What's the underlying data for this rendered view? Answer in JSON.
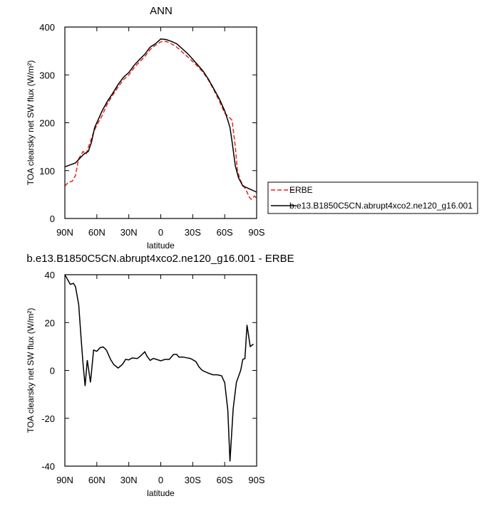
{
  "chart_data": [
    {
      "type": "line",
      "title": "ANN",
      "xlabel": "latitude",
      "ylabel": "TOA clearsky net SW flux (W/m²)",
      "xlim": [
        90,
        -90
      ],
      "xticks": [
        {
          "value": 90,
          "label": "90N"
        },
        {
          "value": 60,
          "label": "60N"
        },
        {
          "value": 30,
          "label": "30N"
        },
        0,
        {
          "value": -30,
          "label": "30S"
        },
        {
          "value": -60,
          "label": "60S"
        },
        {
          "value": -90,
          "label": "90S"
        }
      ],
      "ylim": [
        0,
        400
      ],
      "yticks": [
        0,
        100,
        200,
        300,
        400
      ],
      "legend": "right",
      "series": [
        {
          "name": "ERBE",
          "color": "#e8231c",
          "dash": "dashed",
          "x": [
            90,
            87,
            83,
            80,
            77,
            73,
            70,
            67,
            63,
            60,
            55,
            50,
            45,
            40,
            35,
            30,
            25,
            20,
            15,
            10,
            5,
            0,
            -5,
            -10,
            -15,
            -20,
            -25,
            -30,
            -35,
            -40,
            -45,
            -50,
            -55,
            -60,
            -65,
            -67,
            -70,
            -72,
            -75,
            -80,
            -83,
            -85,
            -88,
            -90
          ],
          "values": [
            68,
            75,
            78,
            90,
            125,
            140,
            135,
            155,
            180,
            195,
            215,
            240,
            258,
            275,
            290,
            300,
            315,
            327,
            338,
            353,
            362,
            369,
            370,
            365,
            358,
            348,
            338,
            328,
            317,
            305,
            288,
            268,
            245,
            220,
            210,
            205,
            150,
            100,
            78,
            60,
            45,
            40,
            47,
            42
          ]
        },
        {
          "name": "b.e13.B1850C5CN.abrupt4xco2.ne120_g16.001",
          "color": "#000000",
          "dash": "solid",
          "x": [
            90,
            85,
            80,
            75,
            72,
            68,
            65,
            62,
            58,
            55,
            50,
            45,
            40,
            35,
            30,
            25,
            20,
            15,
            10,
            5,
            0,
            -5,
            -10,
            -15,
            -20,
            -25,
            -30,
            -35,
            -40,
            -45,
            -50,
            -55,
            -60,
            -63,
            -65,
            -67,
            -70,
            -73,
            -77,
            -82,
            -85,
            -90
          ],
          "values": [
            108,
            112,
            116,
            128,
            135,
            140,
            160,
            190,
            210,
            225,
            245,
            262,
            280,
            295,
            305,
            320,
            332,
            343,
            358,
            365,
            375,
            374,
            370,
            365,
            355,
            345,
            333,
            320,
            307,
            290,
            270,
            250,
            225,
            205,
            190,
            160,
            110,
            85,
            68,
            63,
            60,
            55
          ]
        }
      ]
    },
    {
      "type": "line",
      "title": "b.e13.B1850C5CN.abrupt4xco2.ne120_g16.001 - ERBE",
      "xlabel": "latitude",
      "ylabel": "TOA clearsky net SW flux (W/m²)",
      "xlim": [
        90,
        -90
      ],
      "xticks": [
        {
          "value": 90,
          "label": "90N"
        },
        {
          "value": 60,
          "label": "60N"
        },
        {
          "value": 30,
          "label": "30N"
        },
        0,
        {
          "value": -30,
          "label": "30S"
        },
        {
          "value": -60,
          "label": "60S"
        },
        {
          "value": -90,
          "label": "90S"
        }
      ],
      "ylim": [
        -40,
        40
      ],
      "yticks": [
        -40,
        -20,
        0,
        20,
        40
      ],
      "series": [
        {
          "color": "#000000",
          "dash": "solid",
          "x": [
            90,
            85,
            82,
            80,
            77,
            75,
            73,
            71,
            69,
            66,
            63,
            60,
            57,
            54,
            51,
            47,
            44,
            40,
            36,
            33,
            30,
            27,
            22,
            19,
            15,
            13,
            10,
            7,
            4,
            0,
            -4,
            -8,
            -12,
            -15,
            -17,
            -21,
            -24,
            -28,
            -33,
            -36,
            -39,
            -45,
            -49,
            -53,
            -57,
            -60,
            -63,
            -65,
            -68,
            -71,
            -75,
            -77,
            -79,
            -81,
            -84,
            -87
          ],
          "values": [
            40,
            36,
            36.4,
            35,
            27.5,
            15,
            3,
            -6.5,
            4.3,
            -5,
            8.5,
            8,
            9.5,
            9.8,
            8.5,
            4.5,
            2.4,
            1,
            2.5,
            4.6,
            4.4,
            5.2,
            5,
            6,
            7.8,
            6,
            4.2,
            5,
            4.6,
            4,
            4.6,
            4.6,
            6.7,
            6.7,
            5.6,
            5.6,
            5.3,
            5,
            3.7,
            1.4,
            0,
            -1.2,
            -1.8,
            -1.8,
            -2.2,
            -5.1,
            -16.7,
            -38,
            -16,
            -5,
            0,
            4.6,
            5,
            19,
            10,
            11
          ]
        }
      ]
    }
  ]
}
